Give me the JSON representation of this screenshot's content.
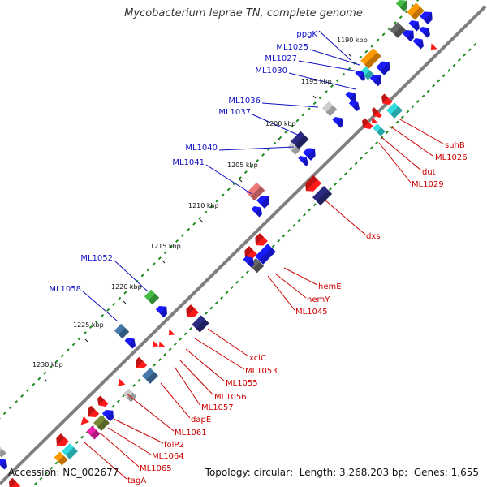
{
  "title": "Mycobacterium leprae TN, complete genome",
  "footer": {
    "accession_label": "Accession:",
    "accession": "NC_002677",
    "topology_label": "Topology:",
    "topology": "circular",
    "length_label": "Length:",
    "length": "3,268,203 bp",
    "genes_label": "Genes:",
    "genes": "1,655"
  },
  "colors": {
    "backbone": "#7f7f7f",
    "tick": "#1f8a1f",
    "forward_label": "#1010c0",
    "reverse_label": "#cc0000",
    "blue": "#1a1aff",
    "red": "#ff1a1a",
    "orange": "#ff9900",
    "cyan": "#33dddd",
    "gray": "#666666",
    "lightgray": "#cccccc",
    "navy": "#2a2a80",
    "pink": "#ee7777",
    "green": "#44bb44",
    "steel": "#4477aa",
    "olive": "#778833",
    "magenta": "#ee22aa"
  },
  "ruler": [
    "1190 kbp",
    "1195 kbp",
    "1200 kbp",
    "1205 kbp",
    "1210 kbp",
    "1215 kbp",
    "1220 kbp",
    "1225 kbp",
    "1230 kbp"
  ],
  "forward_labels": [
    "ppgK",
    "ML1025",
    "ML1027",
    "ML1030",
    "ML1036",
    "ML1037",
    "ML1040",
    "ML1041",
    "ML1052",
    "ML1058"
  ],
  "reverse_labels": [
    "suhB",
    "ML1026",
    "dut",
    "ML1029",
    "dxs",
    "hemE",
    "hemY",
    "ML1045",
    "xclC",
    "ML1053",
    "ML1055",
    "ML1056",
    "ML1057",
    "dapE",
    "ML1061",
    "folP2",
    "ML1064",
    "ML1065",
    "tagA"
  ]
}
